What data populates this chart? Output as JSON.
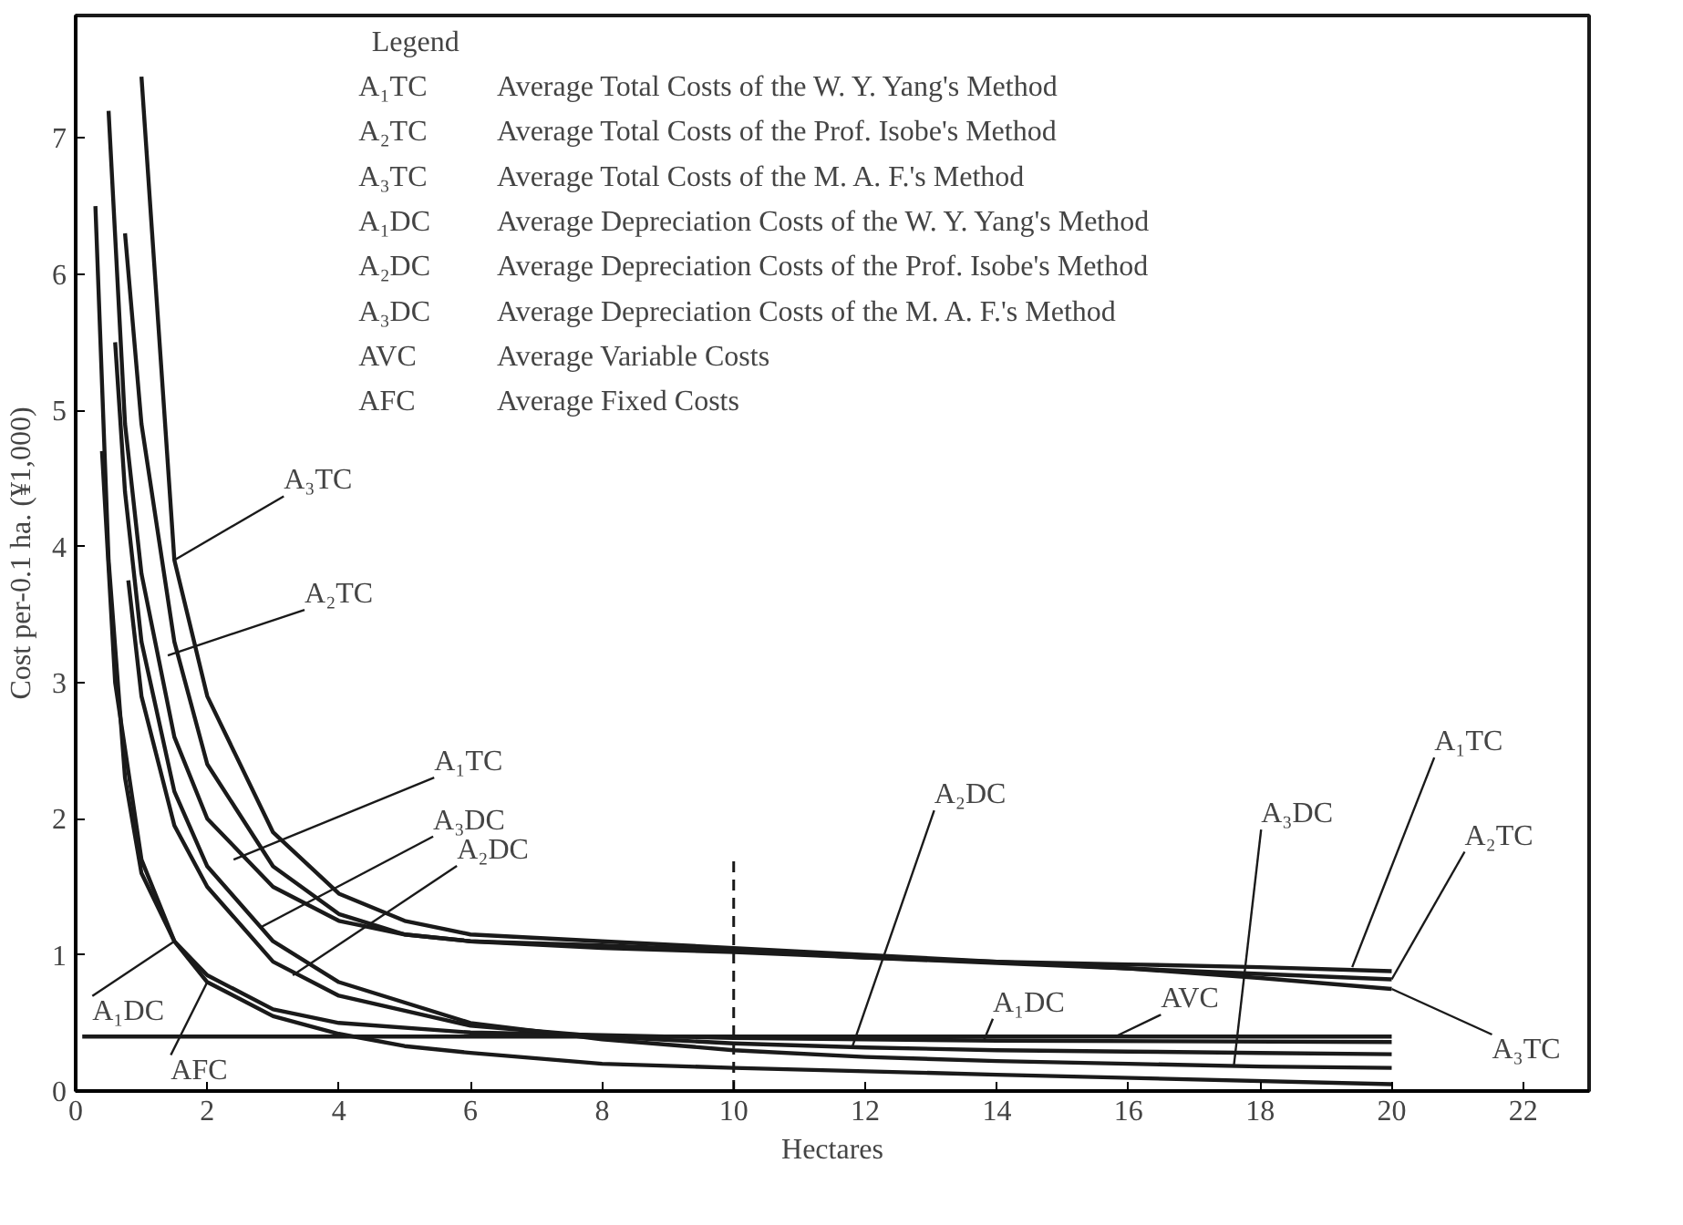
{
  "chart_data": {
    "type": "line",
    "xlabel": "Hectares",
    "ylabel": "Cost per-0.1 ha. (¥1,000)",
    "legend_title": "Legend",
    "xlim": [
      0,
      23
    ],
    "ylim": [
      0,
      7.9
    ],
    "xticks": [
      0,
      2,
      4,
      6,
      8,
      10,
      12,
      14,
      16,
      18,
      20,
      22
    ],
    "yticks": [
      0,
      1,
      2,
      3,
      4,
      5,
      6,
      7
    ],
    "grid": false,
    "line_style": "solid",
    "marker": "none",
    "series": [
      {
        "color": "#1a1a1a",
        "x": [
          0.5,
          0.75,
          1,
          1.5,
          2,
          3,
          4,
          5,
          6,
          8,
          10,
          12,
          14,
          16,
          18,
          20
        ],
        "values": [
          7.2,
          4.9,
          3.8,
          2.6,
          2.0,
          1.5,
          1.25,
          1.15,
          1.1,
          1.05,
          1.02,
          0.98,
          0.95,
          0.93,
          0.91,
          0.88
        ]
      },
      {
        "color": "#1a1a1a",
        "x": [
          0.75,
          1,
          1.5,
          2,
          3,
          4,
          5,
          6,
          8,
          10,
          12,
          14,
          16,
          18,
          20
        ],
        "values": [
          6.3,
          4.9,
          3.3,
          2.4,
          1.65,
          1.3,
          1.15,
          1.1,
          1.07,
          1.03,
          0.98,
          0.94,
          0.9,
          0.86,
          0.82
        ]
      },
      {
        "color": "#1a1a1a",
        "x": [
          1,
          1.5,
          2,
          3,
          4,
          5,
          6,
          8,
          10,
          12,
          14,
          16,
          18,
          20
        ],
        "values": [
          7.45,
          3.9,
          2.9,
          1.9,
          1.45,
          1.25,
          1.15,
          1.1,
          1.05,
          1.0,
          0.95,
          0.9,
          0.83,
          0.75
        ]
      },
      {
        "color": "#1a1a1a",
        "x": [
          0.3,
          0.5,
          0.75,
          1,
          1.5,
          2,
          3,
          4,
          6,
          8,
          10,
          14,
          20
        ],
        "values": [
          6.5,
          3.9,
          2.3,
          1.6,
          1.1,
          0.85,
          0.6,
          0.5,
          0.43,
          0.41,
          0.39,
          0.37,
          0.36
        ]
      },
      {
        "color": "#1a1a1a",
        "x": [
          0.8,
          1,
          1.5,
          2,
          3,
          4,
          6,
          8,
          10,
          12,
          14,
          16,
          18,
          20
        ],
        "values": [
          3.75,
          2.9,
          1.95,
          1.5,
          0.95,
          0.7,
          0.48,
          0.4,
          0.35,
          0.32,
          0.3,
          0.29,
          0.28,
          0.27
        ]
      },
      {
        "color": "#1a1a1a",
        "x": [
          0.6,
          0.75,
          1,
          1.5,
          2,
          3,
          4,
          6,
          8,
          10,
          12,
          14,
          16,
          18,
          20
        ],
        "values": [
          5.5,
          4.4,
          3.3,
          2.2,
          1.65,
          1.1,
          0.8,
          0.5,
          0.38,
          0.3,
          0.25,
          0.22,
          0.2,
          0.18,
          0.17
        ]
      },
      {
        "color": "#1a1a1a",
        "x": [
          0.1,
          20
        ],
        "values": [
          0.4,
          0.4
        ]
      },
      {
        "color": "#1a1a1a",
        "x": [
          0.4,
          0.6,
          1,
          1.5,
          2,
          3,
          4,
          5,
          6,
          8,
          10,
          14,
          20
        ],
        "values": [
          4.7,
          3.0,
          1.7,
          1.1,
          0.8,
          0.55,
          0.42,
          0.33,
          0.28,
          0.2,
          0.17,
          0.12,
          0.05
        ]
      }
    ],
    "ref_lines": [
      {
        "axis": "x",
        "value": 10,
        "line_style": "dashed",
        "color": "#1a1a1a"
      }
    ],
    "annotations": [
      "A₁TC",
      "Average Total Costs of the W. Y. Yang's Method",
      "A₂TC",
      "Average Total Costs of the Prof. Isobe's Method",
      "A₃TC",
      "Average Total Costs of the M. A. F.'s Method",
      "A₁DC",
      "Average Depreciation Costs of the W. Y. Yang's Method",
      "A₂DC",
      "Average Depreciation Costs of the Prof. Isobe's Method",
      "A₃DC",
      "Average Depreciation Costs of the M. A. F.'s Method",
      "AVC",
      "Average Variable Costs",
      "AFC",
      "Average Fixed Costs",
      {
        "text": "A₃TC",
        "x": 1.5,
        "y": 3.9
      },
      {
        "text": "A₂TC",
        "x": 1.4,
        "y": 3.2
      },
      {
        "text": "A₁TC",
        "x": 2.4,
        "y": 1.7
      },
      {
        "text": "A₃DC",
        "x": 2.8,
        "y": 1.2
      },
      {
        "text": "A₂DC",
        "x": 3.3,
        "y": 0.85
      },
      {
        "text": "A₁DC",
        "x": 1.5,
        "y": 1.1
      },
      {
        "text": "AFC",
        "x": 2,
        "y": 0.8
      },
      {
        "text": "A₂DC",
        "x": 11.8,
        "y": 0.32
      },
      {
        "text": "A₁DC",
        "x": 13.8,
        "y": 0.37
      },
      {
        "text": "AVC",
        "x": 15.8,
        "y": 0.4
      },
      {
        "text": "A₃DC",
        "x": 17.6,
        "y": 0.18
      },
      {
        "text": "A₁TC",
        "x": 19.4,
        "y": 0.91
      },
      {
        "text": "A₂TC",
        "x": 20.0,
        "y": 0.82
      },
      {
        "text": "A₃TC",
        "x": 20.0,
        "y": 0.75
      }
    ]
  }
}
